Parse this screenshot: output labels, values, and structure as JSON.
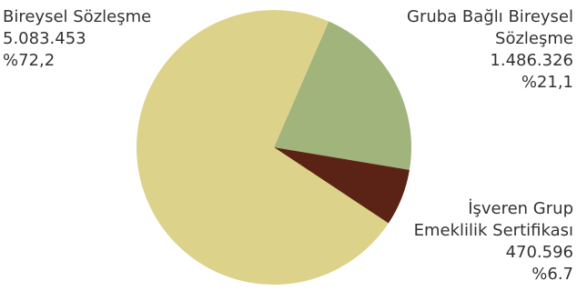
{
  "chart_data": {
    "type": "pie",
    "slices": [
      {
        "label_lines": [
          "Bireysel Sözleşme"
        ],
        "value": "5.083.453",
        "percent": "%72,2",
        "share": 72.2,
        "color": "#DDD28A"
      },
      {
        "label_lines": [
          "Gruba Bağlı Bireysel",
          "Sözleşme"
        ],
        "value": "1.486.326",
        "percent": "%21,1",
        "share": 21.1,
        "color": "#A0B47C"
      },
      {
        "label_lines": [
          "İşveren Grup",
          "Emeklilik Sertifikası"
        ],
        "value": "470.596",
        "percent": "%6.7",
        "share": 6.7,
        "color": "#5B2316"
      }
    ]
  }
}
